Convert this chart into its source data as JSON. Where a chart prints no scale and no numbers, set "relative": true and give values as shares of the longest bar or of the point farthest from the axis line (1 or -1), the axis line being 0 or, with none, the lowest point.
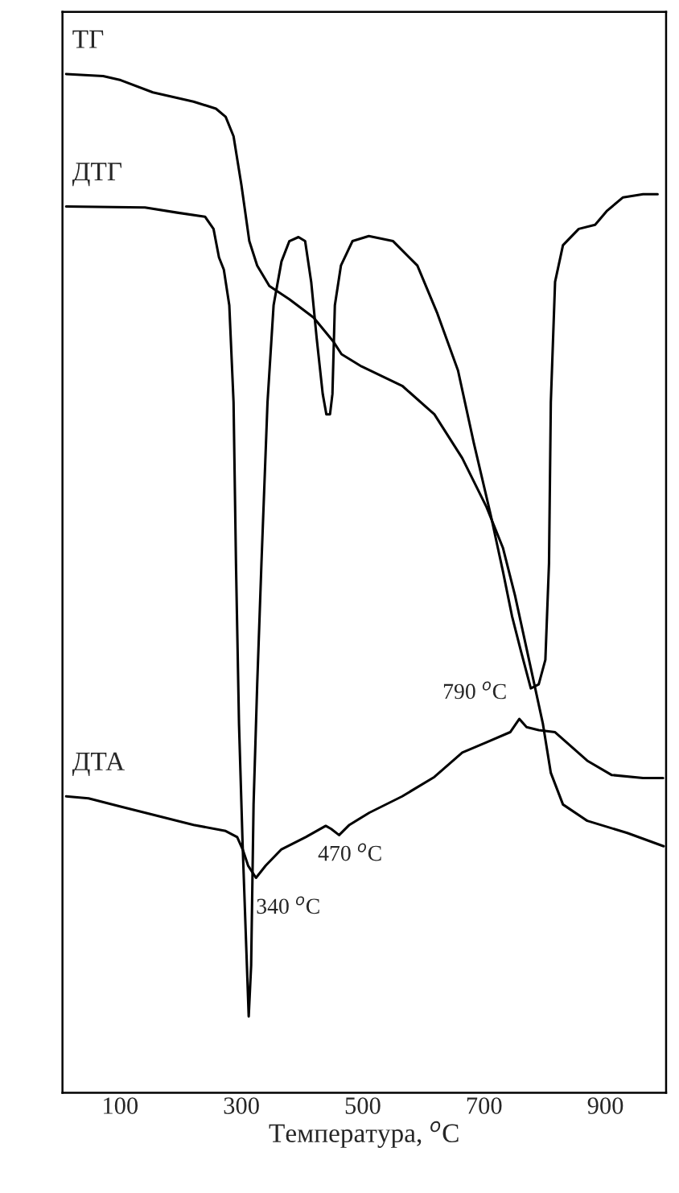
{
  "chart_data": {
    "type": "line",
    "relative": true,
    "xlabel": "Температура, $^{o}$C",
    "xlim": [
      5,
      1000
    ],
    "xticks": [
      100,
      300,
      500,
      700,
      900
    ],
    "tick_labels": "x",
    "grid": false,
    "legend": false,
    "series": [
      {
        "name": "ТГ",
        "color": "#000000",
        "x": [
          11,
          72,
          101,
          154,
          221,
          258,
          274,
          287,
          300,
          313,
          326,
          346,
          379,
          419,
          452,
          465,
          498,
          565,
          618,
          664,
          704,
          731,
          751,
          777,
          797,
          810,
          830,
          870,
          936,
          996
        ],
        "values": [
          1.0,
          0.998,
          0.994,
          0.982,
          0.973,
          0.966,
          0.958,
          0.939,
          0.891,
          0.836,
          0.812,
          0.792,
          0.779,
          0.761,
          0.737,
          0.725,
          0.713,
          0.694,
          0.666,
          0.623,
          0.575,
          0.535,
          0.488,
          0.417,
          0.362,
          0.314,
          0.283,
          0.267,
          0.255,
          0.242
        ]
      },
      {
        "name": "ДТГ",
        "color": "#000000",
        "x": [
          11,
          141,
          194,
          240,
          254,
          263,
          271,
          280,
          287,
          291,
          296,
          302,
          309,
          312,
          316,
          320,
          326,
          333,
          343,
          353,
          366,
          379,
          394,
          405,
          415,
          424,
          434,
          440,
          446,
          450,
          454,
          464,
          483,
          510,
          550,
          590,
          623,
          657,
          683,
          711,
          731,
          746,
          761,
          777,
          790,
          801,
          807,
          810,
          817,
          830,
          856,
          883,
          903,
          929,
          962,
          986
        ],
        "values": [
          0.87,
          0.869,
          0.864,
          0.86,
          0.848,
          0.82,
          0.808,
          0.773,
          0.678,
          0.52,
          0.362,
          0.243,
          0.125,
          0.075,
          0.125,
          0.283,
          0.401,
          0.52,
          0.678,
          0.773,
          0.816,
          0.836,
          0.84,
          0.836,
          0.796,
          0.741,
          0.686,
          0.666,
          0.666,
          0.686,
          0.773,
          0.812,
          0.836,
          0.841,
          0.836,
          0.812,
          0.765,
          0.709,
          0.638,
          0.567,
          0.512,
          0.468,
          0.433,
          0.397,
          0.401,
          0.425,
          0.52,
          0.678,
          0.796,
          0.832,
          0.848,
          0.852,
          0.866,
          0.879,
          0.882,
          0.882
        ]
      },
      {
        "name": "ДТА",
        "color": "#000000",
        "x": [
          11,
          48,
          101,
          167,
          221,
          274,
          293,
          302,
          311,
          324,
          340,
          366,
          406,
          439,
          448,
          461,
          478,
          511,
          565,
          618,
          664,
          704,
          743,
          758,
          770,
          790,
          817,
          870,
          910,
          962,
          995
        ],
        "values": [
          0.291,
          0.289,
          0.281,
          0.271,
          0.263,
          0.257,
          0.251,
          0.239,
          0.223,
          0.211,
          0.223,
          0.239,
          0.251,
          0.262,
          0.259,
          0.253,
          0.263,
          0.275,
          0.291,
          0.31,
          0.334,
          0.344,
          0.354,
          0.367,
          0.359,
          0.356,
          0.354,
          0.326,
          0.312,
          0.309,
          0.309
        ]
      }
    ],
    "annotations": [
      {
        "text": "340 $^{o}$C",
        "x": 324,
        "y": 0.211
      },
      {
        "text": "470 $^{o}$C",
        "x": 461,
        "y": 0.253
      },
      {
        "text": "790 $^{o}$C",
        "x": 758,
        "y": 0.367
      }
    ]
  }
}
